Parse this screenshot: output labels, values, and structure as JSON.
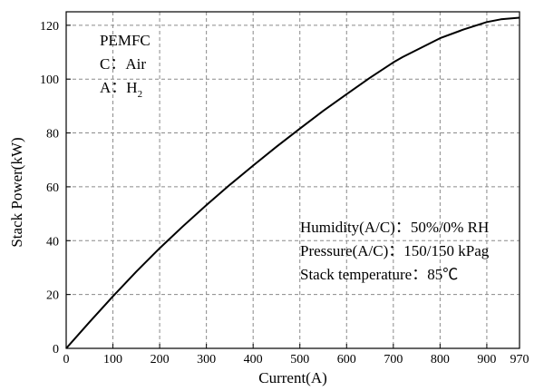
{
  "chart_data": {
    "type": "line",
    "xlabel": "Current(A)",
    "ylabel": "Stack Power(kW)",
    "xlim": [
      0,
      970
    ],
    "ylim": [
      0,
      125
    ],
    "xticks": [
      0,
      100,
      200,
      300,
      400,
      500,
      600,
      700,
      800,
      900,
      970
    ],
    "yticks": [
      0,
      20,
      40,
      60,
      80,
      100,
      120
    ],
    "grid": true,
    "series": [
      {
        "x": [
          0,
          50,
          100,
          150,
          200,
          250,
          300,
          350,
          400,
          450,
          500,
          550,
          600,
          650,
          700,
          720,
          800,
          850,
          900,
          930,
          970
        ],
        "y": [
          0,
          9.8,
          19.3,
          28.5,
          37.2,
          45.4,
          53.2,
          60.7,
          67.9,
          74.9,
          81.6,
          88.2,
          94.4,
          100.5,
          106.2,
          108.2,
          115.2,
          118.4,
          121.2,
          122.2,
          122.8
        ]
      }
    ],
    "annotations": {
      "top_left": {
        "line1": "PEMFC",
        "line2": "C：Air",
        "line3_prefix": "A：H",
        "line3_subscript": "2"
      },
      "right": {
        "line1": "Humidity(A/C)：50%/0% RH",
        "line2": "Pressure(A/C)：150/150 kPag",
        "line3": "Stack temperature：85℃"
      }
    }
  }
}
